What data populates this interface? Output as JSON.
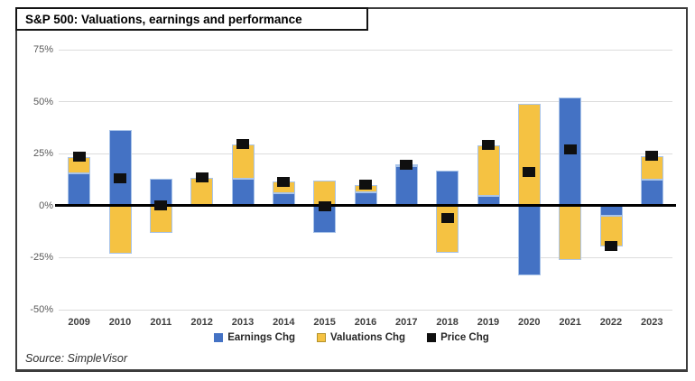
{
  "title": "S&P 500: Valuations, earnings and performance",
  "source": "Source: SimpleVisor",
  "colors": {
    "earnings": "#4472C4",
    "valuations": "#F5C242",
    "price": "#0F0F0F",
    "bar_border": "#A9C4E9",
    "gridline": "#DCDCDC",
    "zero_line": "#000000",
    "frame_border": "#3C3C3C"
  },
  "legend": {
    "items": [
      {
        "label": "Earnings Chg",
        "swatch": "earnings"
      },
      {
        "label": "Valuations Chg",
        "swatch": "valuations"
      },
      {
        "label": "Price Chg",
        "swatch": "price"
      }
    ],
    "position": "bottom-center"
  },
  "y_axis": {
    "tick_labels": [
      "75%",
      "50%",
      "25%",
      "0%",
      "-25%",
      "-50%"
    ],
    "tick_values": [
      75,
      50,
      25,
      0,
      -25,
      -50
    ],
    "max": 75,
    "min": -50,
    "grid": true
  },
  "chart_data": {
    "type": "bar",
    "stacked": true,
    "title": "S&P 500: Valuations, earnings and performance",
    "xlabel": "",
    "ylabel": "",
    "ylim": [
      -50,
      75
    ],
    "legend_position": "bottom",
    "categories": [
      "2009",
      "2010",
      "2011",
      "2012",
      "2013",
      "2014",
      "2015",
      "2016",
      "2017",
      "2018",
      "2019",
      "2020",
      "2021",
      "2022",
      "2023"
    ],
    "series": [
      {
        "name": "Earnings Chg",
        "type": "bar",
        "color": "#4472C4",
        "values": [
          15.5,
          36.5,
          13,
          0,
          13,
          6,
          -13,
          6.5,
          19,
          17,
          4.5,
          -33.5,
          52,
          -5,
          12.5
        ]
      },
      {
        "name": "Valuations Chg",
        "type": "bar",
        "color": "#F5C242",
        "values": [
          8,
          -23,
          -13,
          13.5,
          16.5,
          5.5,
          12,
          3.5,
          1,
          -22.5,
          24.5,
          49,
          -26,
          -14.5,
          11.5
        ]
      },
      {
        "name": "Price Chg",
        "type": "scatter-square",
        "color": "#0F0F0F",
        "values": [
          23.5,
          13,
          0,
          13.5,
          29.5,
          11.5,
          -0.5,
          10,
          19.5,
          -6,
          29,
          16,
          27,
          -19.5,
          24
        ]
      }
    ]
  }
}
